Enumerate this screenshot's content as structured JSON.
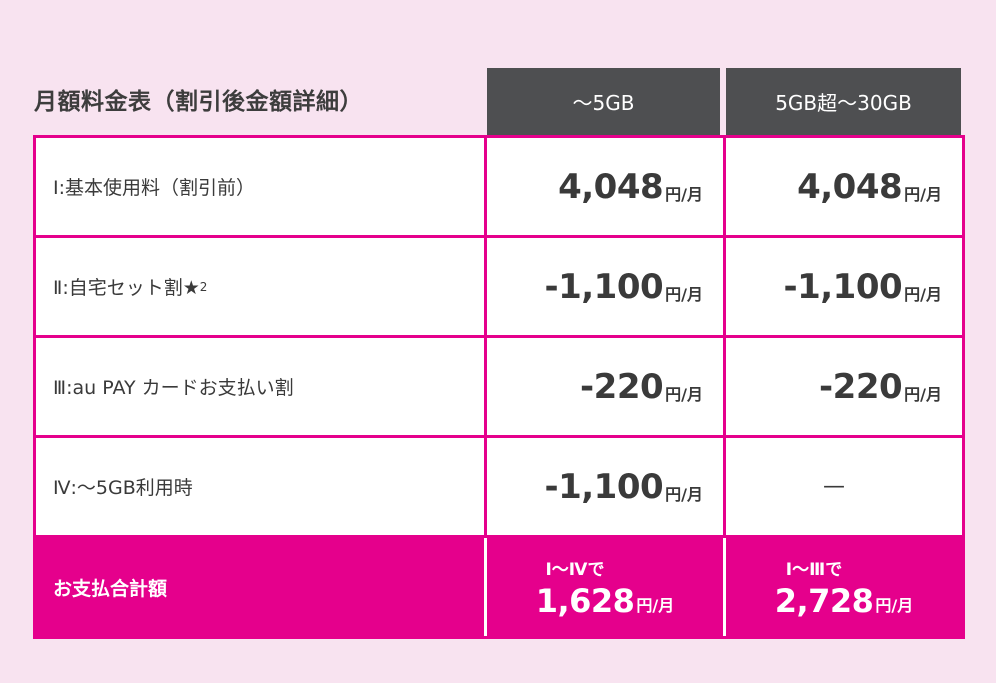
{
  "title": "月額料金表（割引後金額詳細）",
  "columns": [
    "～5GB",
    "5GB超～30GB"
  ],
  "rows": [
    {
      "label": "Ⅰ:基本使用料（割引前）",
      "values": [
        {
          "amount": "4,048",
          "unit": "円/月"
        },
        {
          "amount": "4,048",
          "unit": "円/月"
        }
      ]
    },
    {
      "label": "Ⅱ:自宅セット割★",
      "sup": "2",
      "values": [
        {
          "amount": "-1,100",
          "unit": "円/月"
        },
        {
          "amount": "-1,100",
          "unit": "円/月"
        }
      ]
    },
    {
      "label": "Ⅲ:au PAY カードお支払い割",
      "values": [
        {
          "amount": "-220",
          "unit": "円/月"
        },
        {
          "amount": "-220",
          "unit": "円/月"
        }
      ]
    },
    {
      "label": "Ⅳ:～5GB利用時",
      "values": [
        {
          "amount": "-1,100",
          "unit": "円/月"
        },
        {
          "amount": "—",
          "unit": ""
        }
      ]
    }
  ],
  "total": {
    "label": "お支払合計額",
    "values": [
      {
        "note": "Ⅰ～Ⅳで",
        "amount": "1,628",
        "unit": "円/月"
      },
      {
        "note": "Ⅰ～Ⅲで",
        "amount": "2,728",
        "unit": "円/月"
      }
    ]
  },
  "colors": {
    "accent": "#e5008c",
    "header_bg": "#4e4f51",
    "page_bg": "#f8e3f0"
  }
}
